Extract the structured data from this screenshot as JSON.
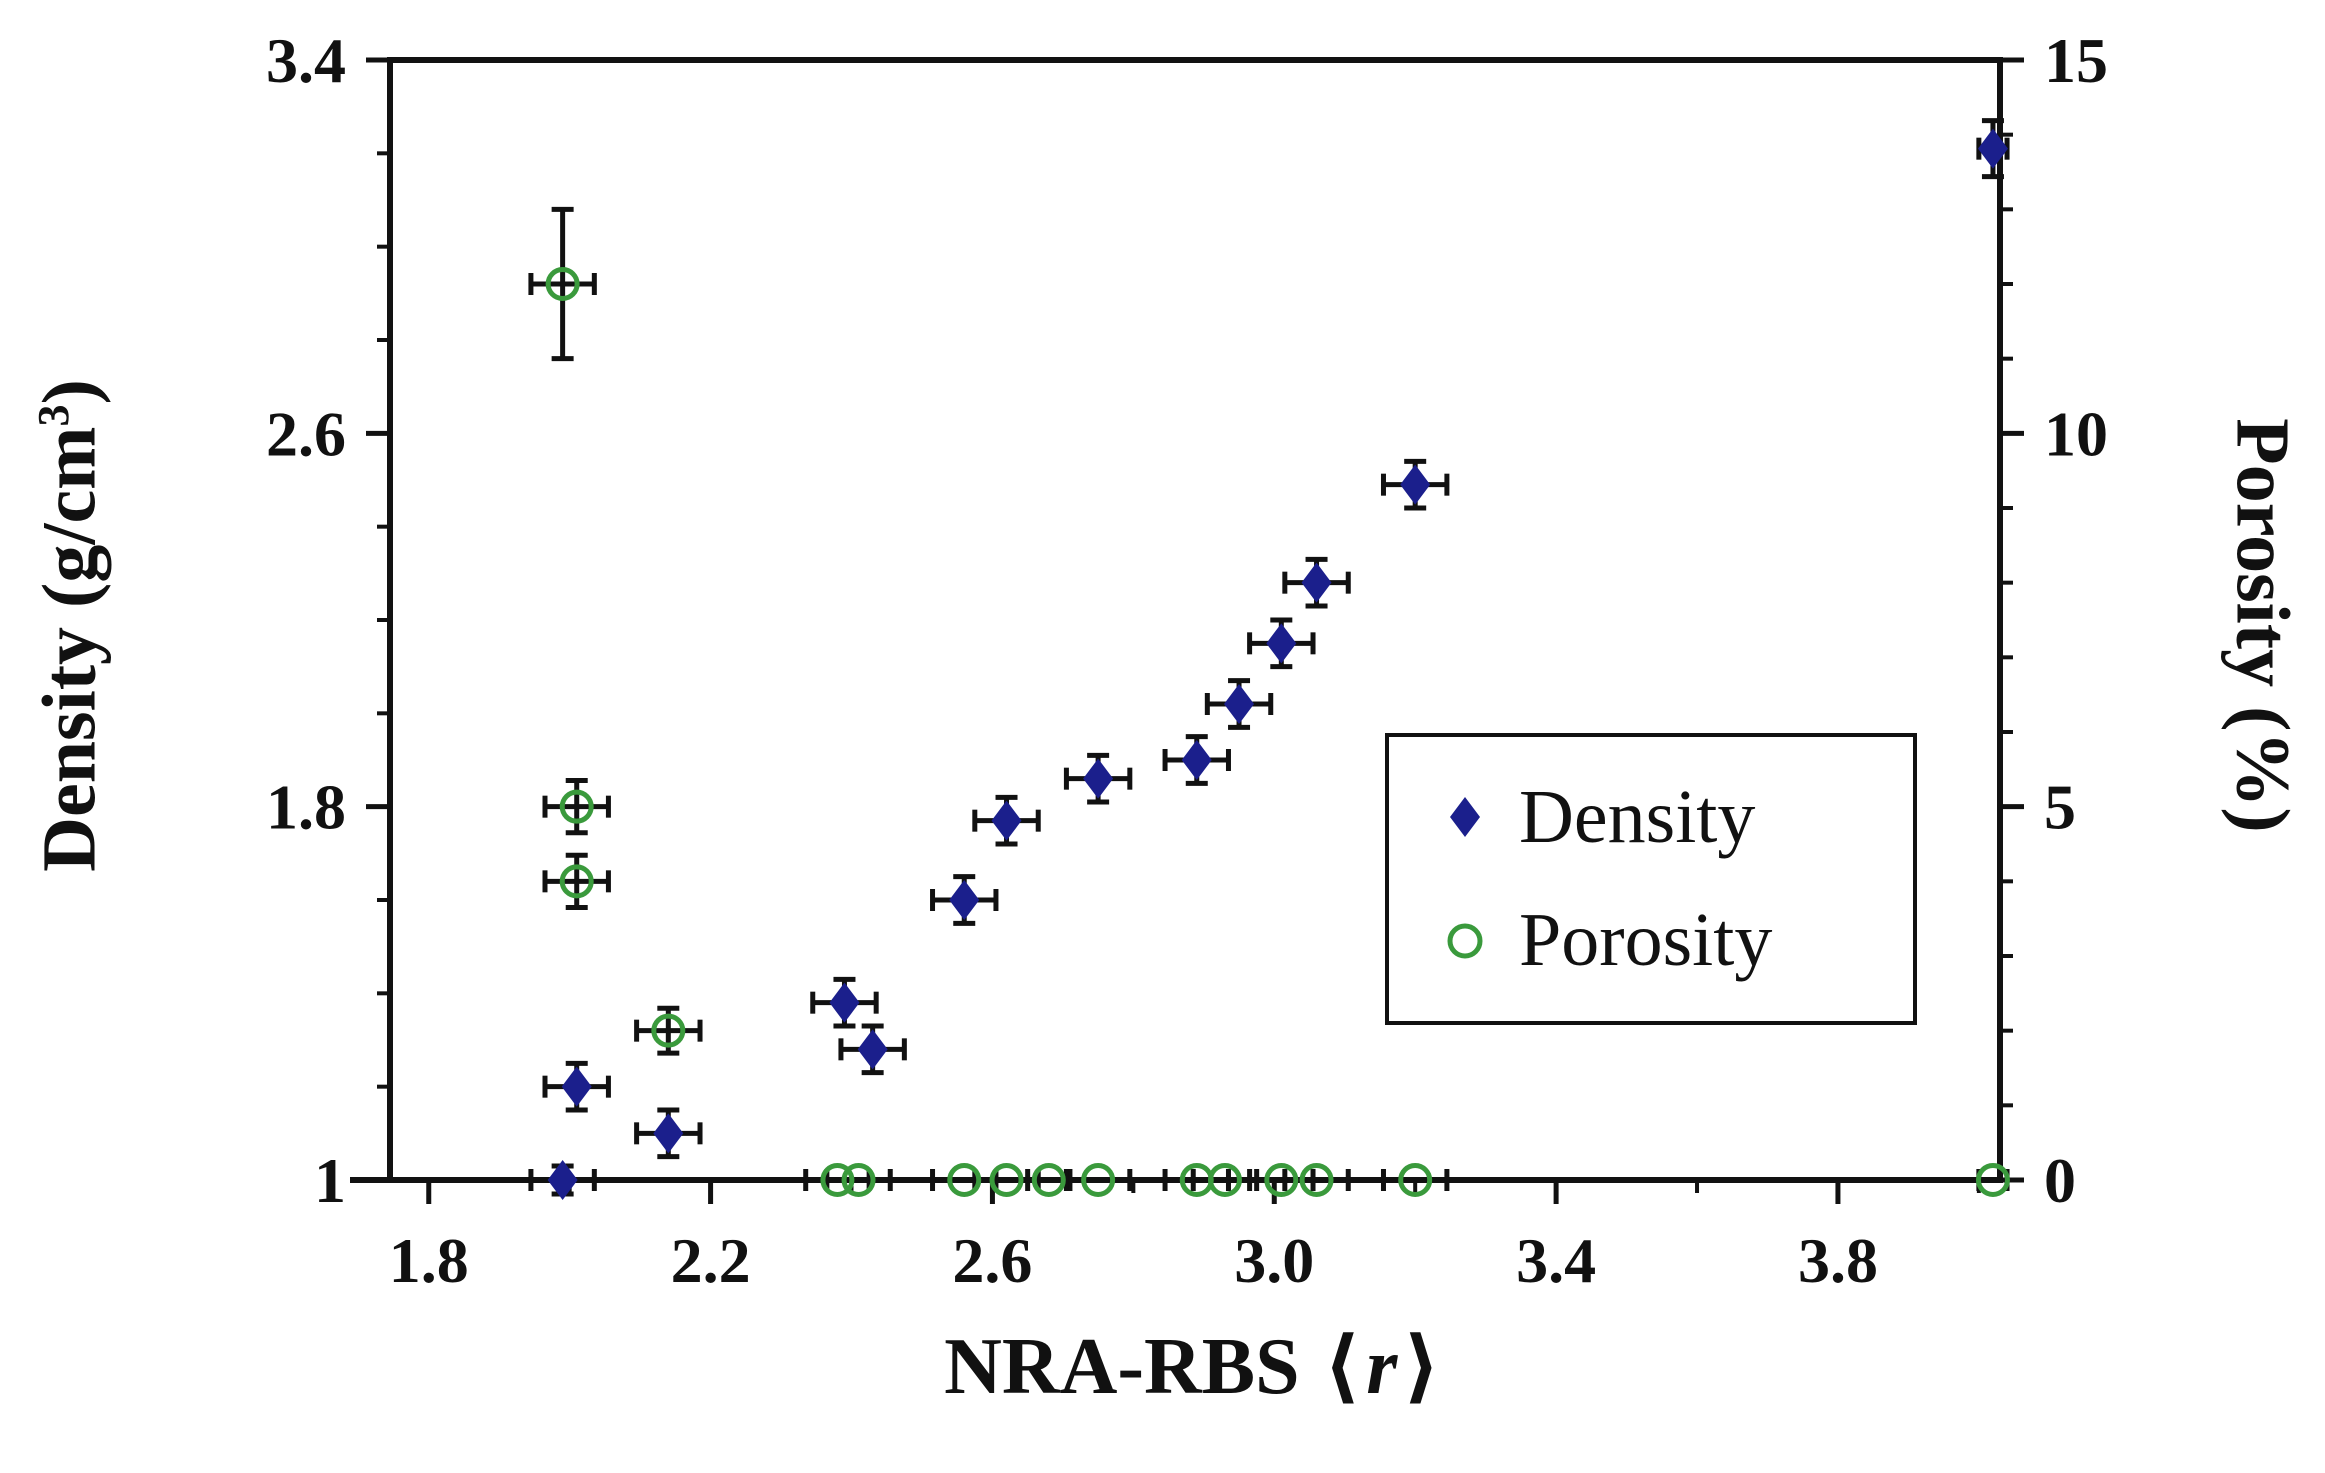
{
  "figure": {
    "background": "#ffffff",
    "axes": {
      "left": {
        "title_main": "Density (g/cm",
        "title_sup": "3",
        "title_end": ")"
      },
      "right": {
        "title": "Porosity (%)"
      },
      "bottom": {
        "title_prefix": "NRA-RBS",
        "bracket_open": "⟨",
        "title_var": "r",
        "bracket_close": "⟩"
      }
    },
    "legend": {
      "position": "center-right",
      "items": [
        {
          "label": "Density",
          "marker": "filled-diamond",
          "color": "#1b1f8c"
        },
        {
          "label": "Porosity",
          "marker": "open-circle",
          "color": "#3a9a3c"
        }
      ]
    }
  },
  "chart_data": {
    "type": "scatter",
    "title": "",
    "xlabel": "NRA-RBS ⟨r⟩",
    "ylabel_left": "Density (g/cm³)",
    "ylabel_right": "Porosity (%)",
    "xlim": [
      1.745,
      4.03
    ],
    "ylim_left": [
      1,
      3.4
    ],
    "ylim_right": [
      0,
      15
    ],
    "grid": false,
    "error_bar_color": "#111111",
    "x_major_ticks": [
      1.8,
      2.2,
      2.6,
      3.0,
      3.4,
      3.8
    ],
    "x_tick_labels": [
      "1.8",
      "2.2",
      "2.6",
      "3.0",
      "3.4",
      "3.8"
    ],
    "x_minor_ticks": [
      2.0,
      2.4,
      2.8,
      3.2,
      3.6,
      4.0
    ],
    "y_left_major_ticks": [
      1,
      1.8,
      2.6,
      3.4
    ],
    "y_left_tick_labels": [
      "1",
      "1.8",
      "2.6",
      "3.4"
    ],
    "y_left_minor_ticks": [
      1.2,
      1.4,
      1.6,
      2.0,
      2.2,
      2.4,
      2.8,
      3.0,
      3.2
    ],
    "y_right_major_ticks": [
      0,
      5,
      10,
      15
    ],
    "y_right_tick_labels": [
      "0",
      "5",
      "10",
      "15"
    ],
    "y_right_minor_ticks": [
      1,
      2,
      3,
      4,
      6,
      7,
      8,
      9,
      11,
      12,
      13,
      14
    ],
    "series": [
      {
        "name": "Density",
        "axis": "left",
        "marker": "filled-diamond",
        "color": "#1b1f8c",
        "points": [
          {
            "x": 1.99,
            "y": 1.0,
            "xerr": 0.045,
            "yerr": 0.03
          },
          {
            "x": 2.01,
            "y": 1.2,
            "xerr": 0.045,
            "yerr": 0.05
          },
          {
            "x": 2.14,
            "y": 1.1,
            "xerr": 0.045,
            "yerr": 0.05
          },
          {
            "x": 2.39,
            "y": 1.38,
            "xerr": 0.045,
            "yerr": 0.05
          },
          {
            "x": 2.43,
            "y": 1.28,
            "xerr": 0.045,
            "yerr": 0.05
          },
          {
            "x": 2.56,
            "y": 1.6,
            "xerr": 0.045,
            "yerr": 0.05
          },
          {
            "x": 2.62,
            "y": 1.77,
            "xerr": 0.045,
            "yerr": 0.05
          },
          {
            "x": 2.75,
            "y": 1.86,
            "xerr": 0.045,
            "yerr": 0.05
          },
          {
            "x": 2.89,
            "y": 1.9,
            "xerr": 0.045,
            "yerr": 0.05
          },
          {
            "x": 2.95,
            "y": 2.02,
            "xerr": 0.045,
            "yerr": 0.05
          },
          {
            "x": 3.01,
            "y": 2.15,
            "xerr": 0.045,
            "yerr": 0.05
          },
          {
            "x": 3.06,
            "y": 2.28,
            "xerr": 0.045,
            "yerr": 0.05
          },
          {
            "x": 3.2,
            "y": 2.49,
            "xerr": 0.045,
            "yerr": 0.05
          },
          {
            "x": 4.02,
            "y": 3.21,
            "xerr": 0.02,
            "yerr": 0.06
          }
        ]
      },
      {
        "name": "Porosity",
        "axis": "right",
        "marker": "open-circle",
        "color": "#3a9a3c",
        "points": [
          {
            "x": 1.99,
            "y": 12.0,
            "xerr": 0.045,
            "yerr": 1.0
          },
          {
            "x": 2.01,
            "y": 5.0,
            "xerr": 0.045,
            "yerr": 0.35
          },
          {
            "x": 2.01,
            "y": 4.0,
            "xerr": 0.045,
            "yerr": 0.35
          },
          {
            "x": 2.14,
            "y": 2.0,
            "xerr": 0.045,
            "yerr": 0.3
          },
          {
            "x": 2.38,
            "y": 0,
            "xerr": 0.045,
            "yerr": 0
          },
          {
            "x": 2.41,
            "y": 0,
            "xerr": 0.045,
            "yerr": 0
          },
          {
            "x": 2.56,
            "y": 0,
            "xerr": 0.045,
            "yerr": 0
          },
          {
            "x": 2.62,
            "y": 0,
            "xerr": 0.045,
            "yerr": 0
          },
          {
            "x": 2.68,
            "y": 0,
            "xerr": 0.03,
            "yerr": 0
          },
          {
            "x": 2.75,
            "y": 0,
            "xerr": 0.045,
            "yerr": 0
          },
          {
            "x": 2.89,
            "y": 0,
            "xerr": 0.045,
            "yerr": 0
          },
          {
            "x": 2.93,
            "y": 0,
            "xerr": 0.045,
            "yerr": 0
          },
          {
            "x": 3.01,
            "y": 0,
            "xerr": 0.045,
            "yerr": 0
          },
          {
            "x": 3.06,
            "y": 0,
            "xerr": 0.045,
            "yerr": 0
          },
          {
            "x": 3.2,
            "y": 0,
            "xerr": 0.045,
            "yerr": 0
          },
          {
            "x": 4.02,
            "y": 0,
            "xerr": 0.02,
            "yerr": 0
          }
        ]
      }
    ]
  }
}
